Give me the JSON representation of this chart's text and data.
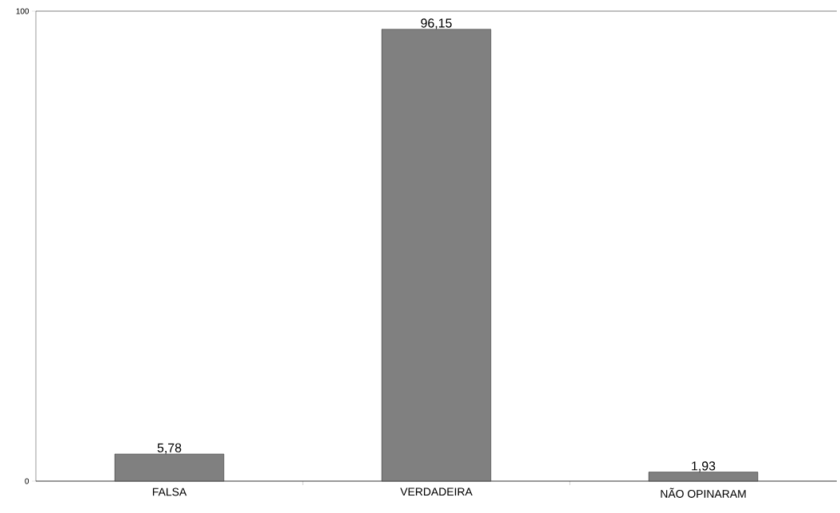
{
  "chart_data": {
    "type": "bar",
    "categories": [
      "FALSA",
      "VERDADEIRA",
      "NÃO OPINARAM"
    ],
    "values": [
      5.78,
      96.15,
      1.93
    ],
    "value_labels": [
      "5,78",
      "96,15",
      "1,93"
    ],
    "color": "#808080",
    "ylim": [
      0,
      100
    ],
    "yticks": [
      0,
      100
    ],
    "grid": "y"
  }
}
